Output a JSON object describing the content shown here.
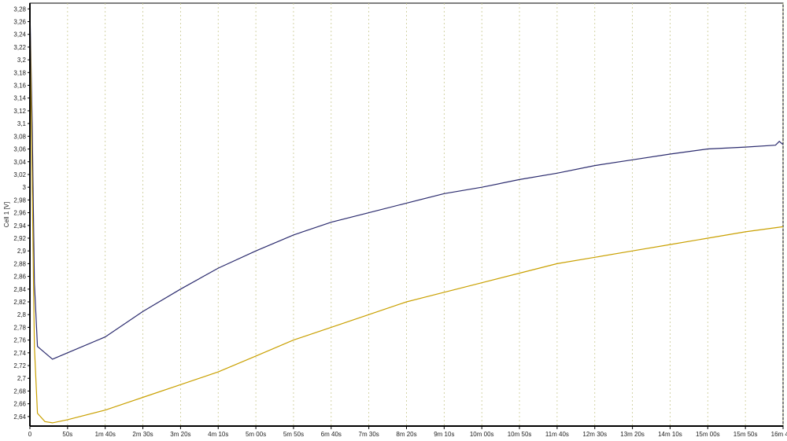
{
  "chart_data": {
    "type": "line",
    "title": "",
    "xlabel": "",
    "ylabel": "Cell 1 [V]",
    "xlim": [
      0,
      1000
    ],
    "ylim": [
      2.625,
      3.289
    ],
    "grid": {
      "x": true,
      "y": false
    },
    "x_tick_values": [
      0,
      50,
      100,
      150,
      200,
      250,
      300,
      350,
      400,
      450,
      500,
      550,
      600,
      650,
      700,
      750,
      800,
      850,
      900,
      950,
      1000
    ],
    "x_tick_labels": [
      "0",
      "50s",
      "1m 40s",
      "2m 30s",
      "3m 20s",
      "4m 10s",
      "5m 00s",
      "5m 50s",
      "6m 40s",
      "7m 30s",
      "8m 20s",
      "9m 10s",
      "10m 00s",
      "10m 50s",
      "11m 40s",
      "12m 30s",
      "13m 20s",
      "14m 10s",
      "15m 00s",
      "15m 50s",
      "16m 40s"
    ],
    "y_tick_values": [
      2.64,
      2.66,
      2.68,
      2.7,
      2.72,
      2.74,
      2.76,
      2.78,
      2.8,
      2.82,
      2.84,
      2.86,
      2.88,
      2.9,
      2.92,
      2.94,
      2.96,
      2.98,
      3.0,
      3.02,
      3.04,
      3.06,
      3.08,
      3.1,
      3.12,
      3.14,
      3.16,
      3.18,
      3.2,
      3.22,
      3.24,
      3.26,
      3.28
    ],
    "y_tick_labels": [
      "2,64",
      "2,66",
      "2,68",
      "2,7",
      "2,72",
      "2,74",
      "2,76",
      "2,78",
      "2,8",
      "2,82",
      "2,84",
      "2,86",
      "2,88",
      "2,9",
      "2,92",
      "2,94",
      "2,96",
      "2,98",
      "3",
      "3,02",
      "3,04",
      "3,06",
      "3,08",
      "3,1",
      "3,12",
      "3,14",
      "3,16",
      "3,18",
      "3,2",
      "3,22",
      "3,24",
      "3,26",
      "3,28"
    ],
    "series": [
      {
        "color": "#2b2b6e",
        "x": [
          0,
          3,
          6,
          10,
          20,
          30,
          50,
          100,
          150,
          200,
          250,
          300,
          350,
          400,
          450,
          500,
          550,
          600,
          650,
          700,
          750,
          800,
          850,
          900,
          950,
          990,
          995,
          1000
        ],
        "y": [
          3.28,
          3.1,
          2.85,
          2.75,
          2.74,
          2.73,
          2.74,
          2.765,
          2.805,
          2.84,
          2.873,
          2.9,
          2.925,
          2.945,
          2.96,
          2.975,
          2.99,
          3.0,
          3.012,
          3.022,
          3.034,
          3.043,
          3.052,
          3.06,
          3.063,
          3.066,
          3.072,
          3.067
        ]
      },
      {
        "color": "#c9a000",
        "x": [
          0,
          3,
          6,
          10,
          20,
          30,
          50,
          100,
          150,
          200,
          250,
          300,
          350,
          400,
          450,
          500,
          550,
          600,
          650,
          700,
          750,
          800,
          850,
          900,
          950,
          1000
        ],
        "y": [
          3.28,
          3.0,
          2.75,
          2.645,
          2.632,
          2.63,
          2.635,
          2.65,
          2.67,
          2.69,
          2.71,
          2.735,
          2.76,
          2.78,
          2.8,
          2.82,
          2.835,
          2.85,
          2.865,
          2.88,
          2.89,
          2.9,
          2.91,
          2.92,
          2.93,
          2.938
        ]
      }
    ]
  }
}
